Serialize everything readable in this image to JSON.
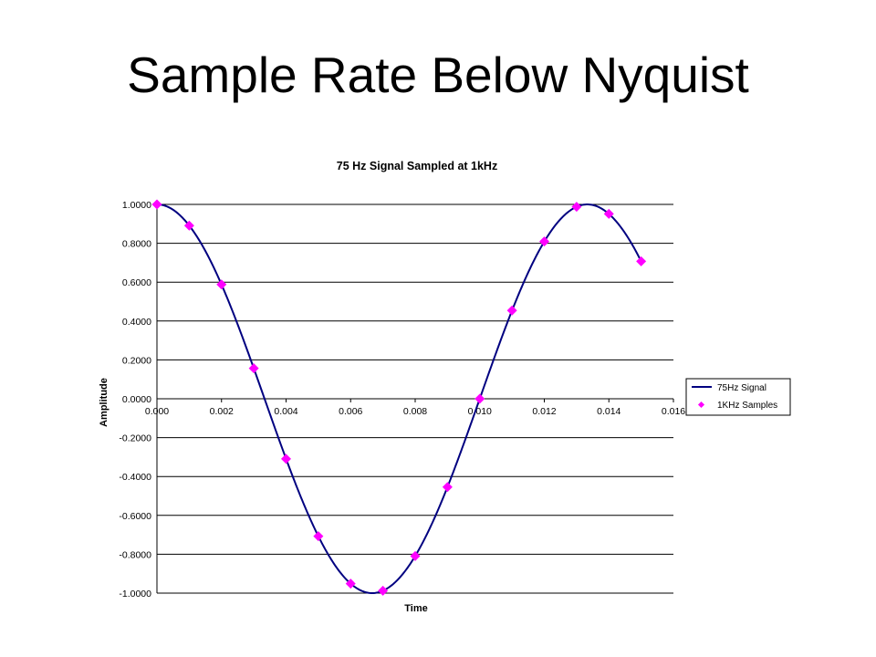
{
  "slide": {
    "title": "Sample Rate Below Nyquist"
  },
  "chart_data": {
    "type": "line",
    "title": "75 Hz Signal Sampled at 1kHz",
    "xlabel": "Time",
    "ylabel": "Amplitude",
    "xlim": [
      0,
      0.016
    ],
    "ylim": [
      -1,
      1
    ],
    "x_ticks": [
      "0.000",
      "0.002",
      "0.004",
      "0.006",
      "0.008",
      "0.010",
      "0.012",
      "0.014",
      "0.016"
    ],
    "y_ticks": [
      "1.0000",
      "0.8000",
      "0.6000",
      "0.4000",
      "0.2000",
      "0.0000",
      "-0.2000",
      "-0.4000",
      "-0.6000",
      "-0.8000",
      "-1.0000"
    ],
    "grid": "horizontal",
    "legend": "right",
    "series": [
      {
        "name": "75Hz Signal",
        "kind": "line",
        "color": "#000080",
        "frequency_hz": 75,
        "x_range": [
          0,
          0.015
        ]
      },
      {
        "name": "1KHz Samples",
        "kind": "markers",
        "color": "#FF00FF",
        "marker": "diamond",
        "x": [
          0.0,
          0.001,
          0.002,
          0.003,
          0.004,
          0.005,
          0.006,
          0.007,
          0.008,
          0.009,
          0.01,
          0.011,
          0.012,
          0.013,
          0.014,
          0.015
        ],
        "y": [
          1.0,
          0.891,
          0.5878,
          0.1564,
          -0.309,
          -0.7071,
          -0.9511,
          -0.9877,
          -0.809,
          -0.454,
          0.0,
          0.454,
          0.809,
          0.9877,
          0.9511,
          0.7071
        ]
      }
    ]
  }
}
